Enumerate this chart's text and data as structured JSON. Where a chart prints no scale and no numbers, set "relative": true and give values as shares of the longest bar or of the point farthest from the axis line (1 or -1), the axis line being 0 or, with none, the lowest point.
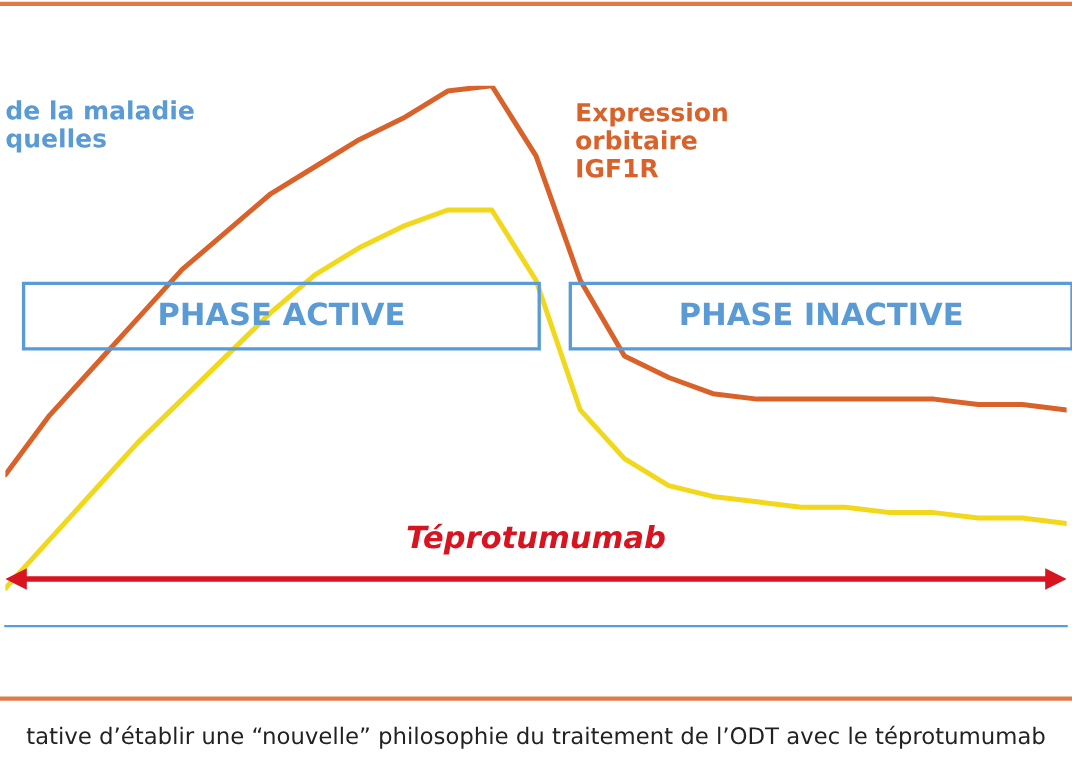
{
  "chart_data": {
    "type": "line",
    "relative": true,
    "grid": false,
    "legend": false,
    "marker": "none",
    "line_style": "solid",
    "categories": [
      null,
      null,
      null,
      null,
      null,
      null,
      null,
      null,
      null,
      null,
      null,
      null,
      null,
      null,
      null,
      null,
      null,
      null,
      null,
      null,
      null,
      null,
      null,
      null,
      null
    ],
    "series": [
      {
        "name": "Expression\norbitaire\nIGF1R",
        "color": "#d9622b",
        "values": [
          0.28,
          0.39,
          0.48,
          0.57,
          0.66,
          0.73,
          0.8,
          0.85,
          0.9,
          0.94,
          0.99,
          1.0,
          0.87,
          0.64,
          0.5,
          0.46,
          0.43,
          0.42,
          0.42,
          0.42,
          0.42,
          0.42,
          0.41,
          0.41,
          0.4
        ]
      },
      {
        "color": "#f2d81d",
        "values": [
          0.07,
          0.16,
          0.25,
          0.34,
          0.42,
          0.5,
          0.58,
          0.65,
          0.7,
          0.74,
          0.77,
          0.77,
          0.64,
          0.4,
          0.31,
          0.26,
          0.24,
          0.23,
          0.22,
          0.22,
          0.21,
          0.21,
          0.2,
          0.2,
          0.19
        ]
      }
    ],
    "annotations": [
      "de la maladie\nquelles",
      "PHASE ACTIVE",
      "PHASE INACTIVE",
      "Téprotumumab",
      "tative d’établir une “nouvelle” philosophie du traitement de l’ODT avec le téprotumumab"
    ]
  }
}
